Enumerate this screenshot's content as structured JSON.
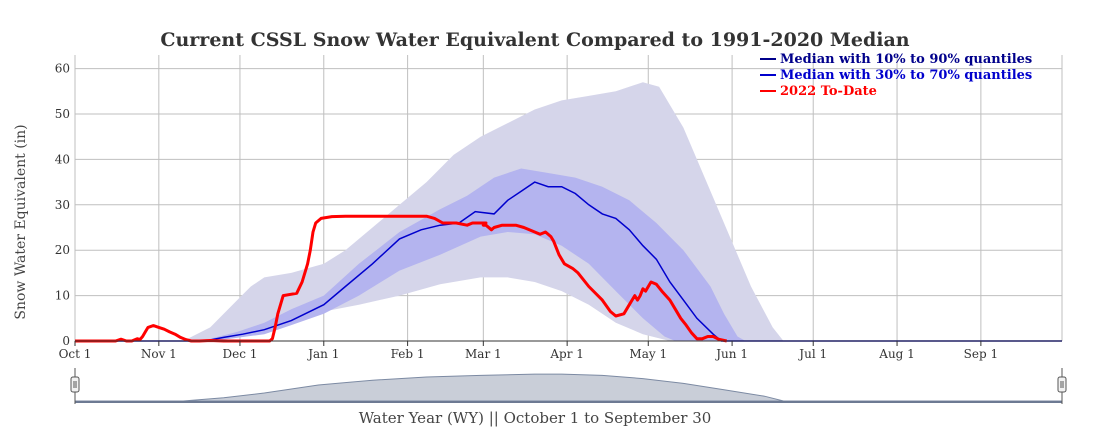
{
  "chart_data": {
    "type": "area",
    "title": "Current CSSL Snow Water Equivalent Compared to 1991-2020 Median",
    "ylabel": "Snow Water Equivalent (in)",
    "xlabel": "Water Year (WY) || October 1 to September 30",
    "ylim": [
      0,
      63
    ],
    "xlim_days": [
      0,
      365
    ],
    "yticks": [
      0,
      10,
      20,
      30,
      40,
      50,
      60
    ],
    "xticks": [
      {
        "label": "Oct 1",
        "day": 0
      },
      {
        "label": "Nov 1",
        "day": 31
      },
      {
        "label": "Dec 1",
        "day": 61
      },
      {
        "label": "Jan 1",
        "day": 92
      },
      {
        "label": "Feb 1",
        "day": 123
      },
      {
        "label": "Mar 1",
        "day": 151
      },
      {
        "label": "Apr 1",
        "day": 182
      },
      {
        "label": "May 1",
        "day": 212
      },
      {
        "label": "Jun 1",
        "day": 243
      },
      {
        "label": "Jul 1",
        "day": 273
      },
      {
        "label": "Aug 1",
        "day": 304
      },
      {
        "label": "Sep 1",
        "day": 335
      }
    ],
    "legend_position": "top-right",
    "legend": [
      {
        "name": "Median with 10% to 90% quantiles",
        "color": "#00008b"
      },
      {
        "name": "Median with 30% to 70% quantiles",
        "color": "#0000cd"
      },
      {
        "name": "2022 To-Date",
        "color": "#ff0000"
      }
    ],
    "series": [
      {
        "name": "10% quantile",
        "points": [
          [
            0,
            0
          ],
          [
            40,
            0
          ],
          [
            50,
            0.5
          ],
          [
            60,
            1.5
          ],
          [
            70,
            3
          ],
          [
            80,
            5
          ],
          [
            92,
            6.5
          ],
          [
            105,
            8
          ],
          [
            120,
            10
          ],
          [
            135,
            12.5
          ],
          [
            150,
            14
          ],
          [
            160,
            14
          ],
          [
            170,
            13
          ],
          [
            180,
            11
          ],
          [
            190,
            8
          ],
          [
            200,
            4
          ],
          [
            210,
            1.5
          ],
          [
            220,
            0
          ],
          [
            365,
            0
          ]
        ]
      },
      {
        "name": "90% quantile",
        "points": [
          [
            0,
            0
          ],
          [
            40,
            0
          ],
          [
            50,
            3
          ],
          [
            55,
            6
          ],
          [
            60,
            9
          ],
          [
            65,
            12
          ],
          [
            70,
            14
          ],
          [
            80,
            15
          ],
          [
            92,
            17
          ],
          [
            100,
            20
          ],
          [
            110,
            25
          ],
          [
            120,
            30
          ],
          [
            130,
            35
          ],
          [
            140,
            41
          ],
          [
            150,
            45
          ],
          [
            160,
            48
          ],
          [
            170,
            51
          ],
          [
            180,
            53
          ],
          [
            190,
            54
          ],
          [
            200,
            55
          ],
          [
            210,
            57
          ],
          [
            216,
            56
          ],
          [
            225,
            47
          ],
          [
            235,
            33
          ],
          [
            245,
            19
          ],
          [
            250,
            12
          ],
          [
            258,
            3
          ],
          [
            262,
            0
          ],
          [
            365,
            0
          ]
        ]
      },
      {
        "name": "30% quantile",
        "points": [
          [
            0,
            0
          ],
          [
            40,
            0
          ],
          [
            55,
            0.3
          ],
          [
            70,
            1.5
          ],
          [
            80,
            3.5
          ],
          [
            92,
            6
          ],
          [
            105,
            10
          ],
          [
            120,
            15.5
          ],
          [
            135,
            19
          ],
          [
            150,
            23
          ],
          [
            160,
            24
          ],
          [
            170,
            23.5
          ],
          [
            180,
            21
          ],
          [
            190,
            17
          ],
          [
            200,
            11
          ],
          [
            210,
            5
          ],
          [
            218,
            1
          ],
          [
            222,
            0
          ],
          [
            365,
            0
          ]
        ]
      },
      {
        "name": "70% quantile",
        "points": [
          [
            0,
            0
          ],
          [
            40,
            0
          ],
          [
            50,
            0.5
          ],
          [
            60,
            2
          ],
          [
            70,
            4
          ],
          [
            80,
            7
          ],
          [
            92,
            10
          ],
          [
            105,
            17
          ],
          [
            120,
            24
          ],
          [
            135,
            29
          ],
          [
            145,
            32
          ],
          [
            155,
            36
          ],
          [
            165,
            38
          ],
          [
            175,
            37
          ],
          [
            185,
            36
          ],
          [
            195,
            34
          ],
          [
            205,
            31
          ],
          [
            215,
            26
          ],
          [
            225,
            20
          ],
          [
            235,
            12
          ],
          [
            240,
            6
          ],
          [
            245,
            1
          ],
          [
            248,
            0
          ],
          [
            365,
            0
          ]
        ]
      },
      {
        "name": "Median",
        "color": "#0000cd",
        "points": [
          [
            0,
            0
          ],
          [
            48,
            0
          ],
          [
            55,
            0.8
          ],
          [
            62,
            1.5
          ],
          [
            70,
            2.5
          ],
          [
            80,
            4.5
          ],
          [
            92,
            8
          ],
          [
            100,
            12
          ],
          [
            110,
            17
          ],
          [
            120,
            22.5
          ],
          [
            128,
            24.5
          ],
          [
            135,
            25.5
          ],
          [
            142,
            26
          ],
          [
            148,
            28.5
          ],
          [
            155,
            28
          ],
          [
            160,
            31
          ],
          [
            165,
            33
          ],
          [
            170,
            35
          ],
          [
            175,
            34
          ],
          [
            180,
            34
          ],
          [
            185,
            32.5
          ],
          [
            190,
            30
          ],
          [
            195,
            28
          ],
          [
            200,
            27
          ],
          [
            205,
            24.5
          ],
          [
            210,
            21
          ],
          [
            215,
            18
          ],
          [
            220,
            13
          ],
          [
            225,
            9
          ],
          [
            230,
            5
          ],
          [
            236,
            1.5
          ],
          [
            239,
            0
          ],
          [
            365,
            0
          ]
        ]
      },
      {
        "name": "2022 To-Date",
        "color": "#ff0000",
        "points": [
          [
            0,
            0
          ],
          [
            15,
            0
          ],
          [
            17,
            0.4
          ],
          [
            19,
            0
          ],
          [
            21,
            0
          ],
          [
            23,
            0.5
          ],
          [
            24,
            0.3
          ],
          [
            25,
            1
          ],
          [
            26,
            2
          ],
          [
            27,
            3
          ],
          [
            29,
            3.4
          ],
          [
            31,
            3
          ],
          [
            33,
            2.6
          ],
          [
            35,
            2
          ],
          [
            37,
            1.5
          ],
          [
            39,
            0.8
          ],
          [
            41,
            0.3
          ],
          [
            43,
            0
          ],
          [
            46,
            0
          ],
          [
            50,
            0.1
          ],
          [
            55,
            0
          ],
          [
            60,
            0
          ],
          [
            72,
            0
          ],
          [
            73,
            0.5
          ],
          [
            74,
            3
          ],
          [
            75,
            6
          ],
          [
            76,
            8
          ],
          [
            77,
            10
          ],
          [
            82,
            10.5
          ],
          [
            84,
            13
          ],
          [
            86,
            17
          ],
          [
            87,
            20
          ],
          [
            88,
            24
          ],
          [
            89,
            26
          ],
          [
            91,
            27
          ],
          [
            95,
            27.4
          ],
          [
            100,
            27.5
          ],
          [
            120,
            27.5
          ],
          [
            130,
            27.5
          ],
          [
            133,
            27
          ],
          [
            136,
            26
          ],
          [
            141,
            26
          ],
          [
            145,
            25.5
          ],
          [
            147,
            26
          ],
          [
            150,
            26
          ],
          [
            152,
            26
          ],
          [
            151,
            25.5
          ],
          [
            152,
            25.5
          ],
          [
            154,
            24.5
          ],
          [
            155,
            25
          ],
          [
            158,
            25.5
          ],
          [
            163,
            25.5
          ],
          [
            166,
            25
          ],
          [
            170,
            24
          ],
          [
            172,
            23.5
          ],
          [
            174,
            24
          ],
          [
            176,
            23
          ],
          [
            177,
            22
          ],
          [
            179,
            19
          ],
          [
            181,
            17
          ],
          [
            184,
            16
          ],
          [
            186,
            15
          ],
          [
            190,
            12
          ],
          [
            195,
            9
          ],
          [
            198,
            6.5
          ],
          [
            200,
            5.5
          ],
          [
            203,
            6
          ],
          [
            205,
            8
          ],
          [
            207,
            10
          ],
          [
            208,
            9
          ],
          [
            209,
            10
          ],
          [
            210,
            11.5
          ],
          [
            211,
            11
          ],
          [
            212,
            12
          ],
          [
            213,
            13
          ],
          [
            215,
            12.5
          ],
          [
            217,
            11
          ],
          [
            220,
            9
          ],
          [
            222,
            7
          ],
          [
            224,
            5
          ],
          [
            226,
            3.5
          ],
          [
            228,
            1.8
          ],
          [
            230,
            0.5
          ],
          [
            232,
            0.5
          ],
          [
            234,
            1
          ],
          [
            236,
            1
          ],
          [
            238,
            0.4
          ],
          [
            241,
            0
          ]
        ]
      }
    ],
    "navigator": {
      "points": [
        [
          0,
          0
        ],
        [
          40,
          0
        ],
        [
          55,
          1
        ],
        [
          70,
          2.5
        ],
        [
          90,
          5
        ],
        [
          110,
          6.5
        ],
        [
          130,
          7.5
        ],
        [
          150,
          8
        ],
        [
          170,
          8.4
        ],
        [
          180,
          8.4
        ],
        [
          195,
          8
        ],
        [
          210,
          7
        ],
        [
          225,
          5.5
        ],
        [
          240,
          3.5
        ],
        [
          255,
          1.5
        ],
        [
          262,
          0
        ],
        [
          365,
          0
        ]
      ],
      "max": 10
    }
  }
}
